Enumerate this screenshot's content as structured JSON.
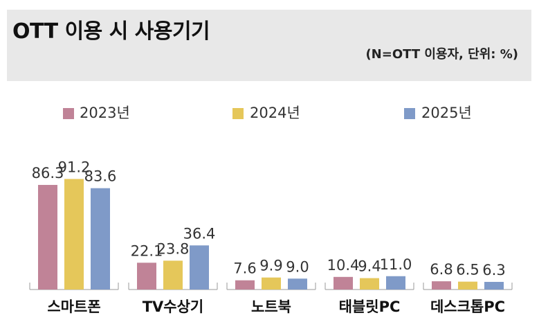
{
  "header": {
    "title": "OTT 이용 시 사용기기",
    "subtitle": "(N=OTT 이용자, 단위: %)"
  },
  "colors": {
    "s2023": "#c08397",
    "s2024": "#e5c75a",
    "s2025": "#7f9ac8",
    "header_bg": "#e8e8e8"
  },
  "chart_data": {
    "type": "bar",
    "title": "OTT 이용 시 사용기기",
    "subtitle": "(N=OTT 이용자, 단위: %)",
    "categories": [
      "스마트폰",
      "TV수상기",
      "노트북",
      "태블릿PC",
      "데스크톱PC"
    ],
    "series": [
      {
        "name": "2023년",
        "values": [
          86.3,
          22.1,
          7.6,
          10.4,
          6.8
        ],
        "labels": [
          "86.3",
          "22.1",
          "7.6",
          "10.4",
          "6.8"
        ]
      },
      {
        "name": "2024년",
        "values": [
          91.2,
          23.8,
          9.9,
          9.4,
          6.5
        ],
        "labels": [
          "91.2",
          "23.8",
          "9.9",
          "9.4",
          "6.5"
        ]
      },
      {
        "name": "2025년",
        "values": [
          83.6,
          36.4,
          9.0,
          11.0,
          6.3
        ],
        "labels": [
          "83.6",
          "36.4",
          "9.0",
          "11.0",
          "6.3"
        ]
      }
    ],
    "ylim": [
      0,
      100
    ],
    "xlabel": "",
    "ylabel": "",
    "legend": "top"
  }
}
